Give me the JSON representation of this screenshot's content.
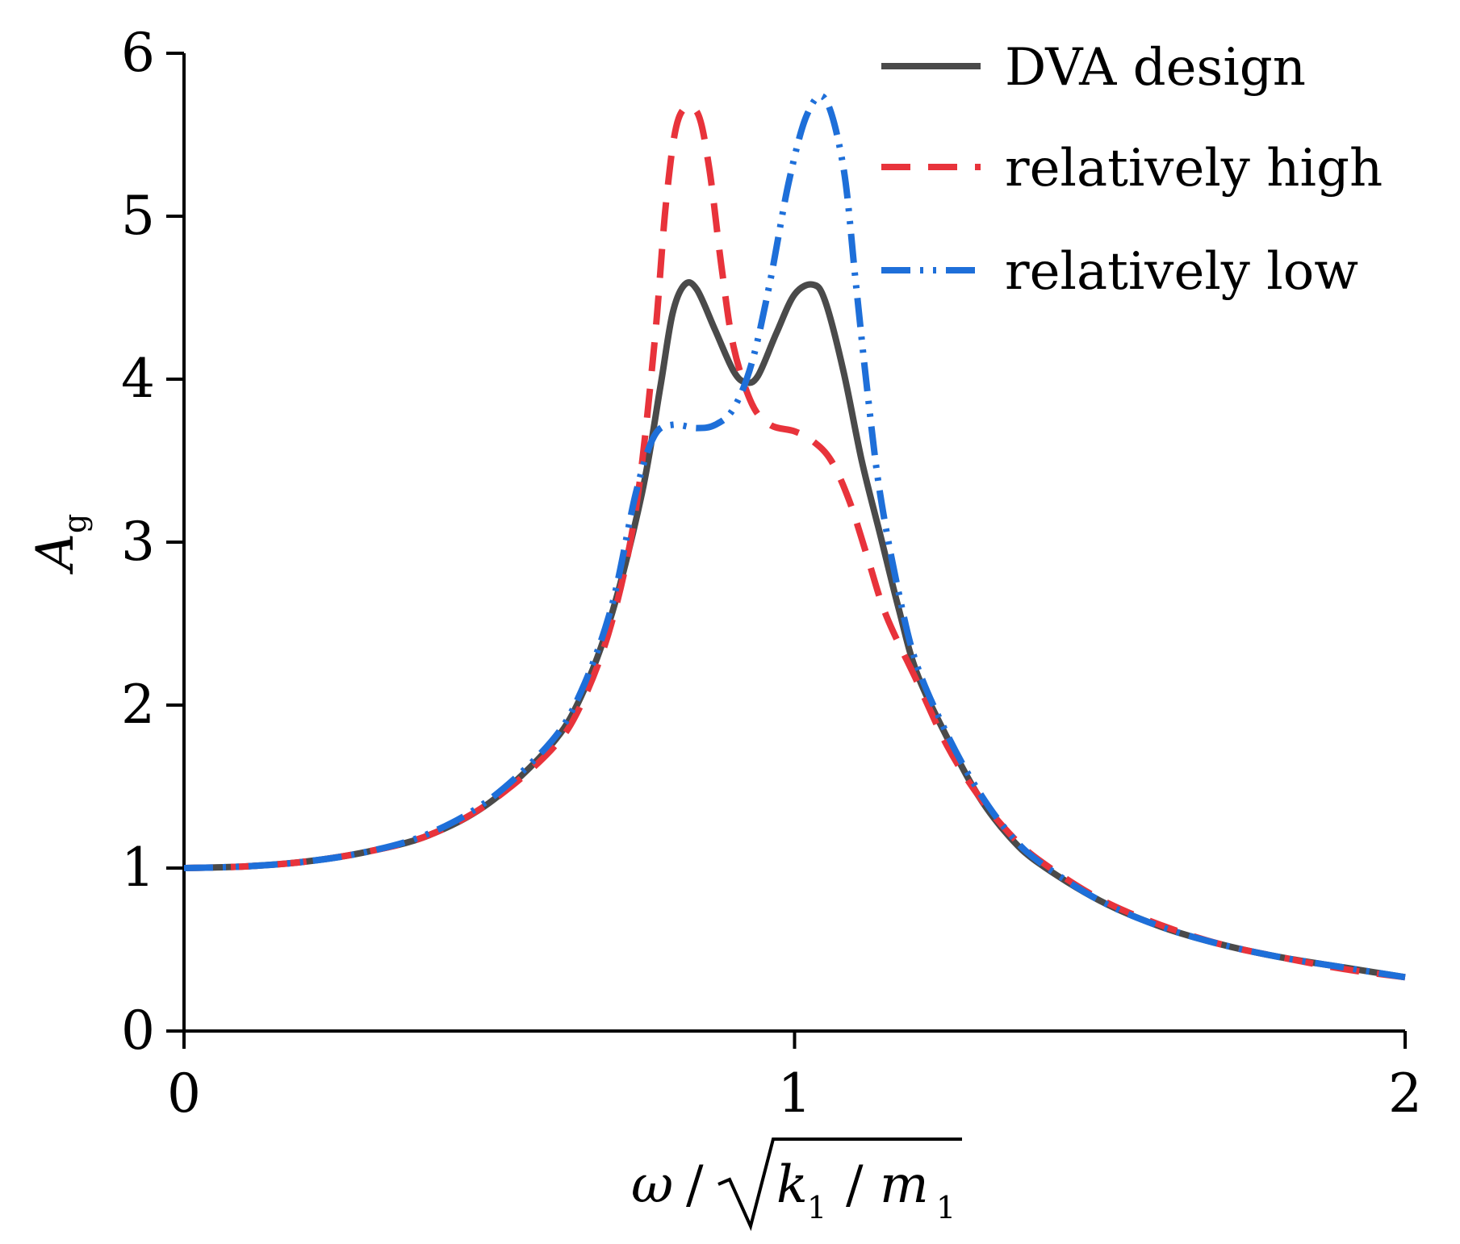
{
  "chart_data": {
    "type": "line",
    "title": "",
    "xlabel": {
      "omega": "ω",
      "slash1": "/",
      "k": "k",
      "k_sub": "1",
      "slash2": "/",
      "m": "m",
      "m_sub": "1"
    },
    "ylabel": {
      "main": "A",
      "sub": "g"
    },
    "xlim": [
      0,
      2
    ],
    "ylim": [
      0,
      6
    ],
    "xticks": [
      "0",
      "1",
      "2"
    ],
    "yticks": [
      "0",
      "1",
      "2",
      "3",
      "4",
      "5",
      "6"
    ],
    "xtick_values": [
      0,
      1,
      2
    ],
    "ytick_values": [
      0,
      1,
      2,
      3,
      4,
      5,
      6
    ],
    "grid": false,
    "legend_position": "top-right",
    "series": [
      {
        "name": "DVA design",
        "color": "#4a4a4a",
        "style": "solid",
        "points": [
          [
            0,
            1.0
          ],
          [
            0.1,
            1.01
          ],
          [
            0.2,
            1.04
          ],
          [
            0.3,
            1.1
          ],
          [
            0.4,
            1.2
          ],
          [
            0.5,
            1.4
          ],
          [
            0.6,
            1.75
          ],
          [
            0.65,
            2.05
          ],
          [
            0.7,
            2.55
          ],
          [
            0.75,
            3.3
          ],
          [
            0.78,
            3.95
          ],
          [
            0.8,
            4.4
          ],
          [
            0.82,
            4.58
          ],
          [
            0.84,
            4.55
          ],
          [
            0.87,
            4.3
          ],
          [
            0.9,
            4.05
          ],
          [
            0.92,
            3.98
          ],
          [
            0.94,
            4.02
          ],
          [
            0.97,
            4.28
          ],
          [
            1.0,
            4.52
          ],
          [
            1.03,
            4.58
          ],
          [
            1.05,
            4.48
          ],
          [
            1.08,
            4.05
          ],
          [
            1.11,
            3.5
          ],
          [
            1.14,
            3.05
          ],
          [
            1.17,
            2.6
          ],
          [
            1.2,
            2.2
          ],
          [
            1.25,
            1.8
          ],
          [
            1.3,
            1.45
          ],
          [
            1.35,
            1.2
          ],
          [
            1.4,
            1.03
          ],
          [
            1.5,
            0.8
          ],
          [
            1.6,
            0.64
          ],
          [
            1.7,
            0.53
          ],
          [
            1.8,
            0.45
          ],
          [
            1.9,
            0.39
          ],
          [
            2.0,
            0.33
          ]
        ]
      },
      {
        "name": "relatively high",
        "color": "#e8333b",
        "style": "dashed",
        "points": [
          [
            0,
            1.0
          ],
          [
            0.1,
            1.01
          ],
          [
            0.2,
            1.04
          ],
          [
            0.3,
            1.1
          ],
          [
            0.4,
            1.2
          ],
          [
            0.5,
            1.4
          ],
          [
            0.6,
            1.72
          ],
          [
            0.65,
            2.0
          ],
          [
            0.7,
            2.5
          ],
          [
            0.74,
            3.2
          ],
          [
            0.77,
            4.2
          ],
          [
            0.79,
            5.1
          ],
          [
            0.81,
            5.6
          ],
          [
            0.84,
            5.64
          ],
          [
            0.86,
            5.3
          ],
          [
            0.88,
            4.7
          ],
          [
            0.9,
            4.2
          ],
          [
            0.93,
            3.85
          ],
          [
            0.96,
            3.72
          ],
          [
            1.0,
            3.68
          ],
          [
            1.03,
            3.62
          ],
          [
            1.06,
            3.5
          ],
          [
            1.09,
            3.25
          ],
          [
            1.12,
            2.9
          ],
          [
            1.15,
            2.55
          ],
          [
            1.2,
            2.15
          ],
          [
            1.25,
            1.75
          ],
          [
            1.3,
            1.45
          ],
          [
            1.35,
            1.22
          ],
          [
            1.4,
            1.05
          ],
          [
            1.5,
            0.81
          ],
          [
            1.6,
            0.65
          ],
          [
            1.7,
            0.53
          ],
          [
            1.8,
            0.45
          ],
          [
            1.9,
            0.38
          ],
          [
            2.0,
            0.33
          ]
        ]
      },
      {
        "name": "relatively low",
        "color": "#1e6fd9",
        "style": "dash-dot-dot",
        "points": [
          [
            0,
            1.0
          ],
          [
            0.1,
            1.01
          ],
          [
            0.2,
            1.04
          ],
          [
            0.3,
            1.1
          ],
          [
            0.4,
            1.21
          ],
          [
            0.5,
            1.42
          ],
          [
            0.6,
            1.77
          ],
          [
            0.65,
            2.08
          ],
          [
            0.7,
            2.6
          ],
          [
            0.74,
            3.3
          ],
          [
            0.77,
            3.65
          ],
          [
            0.8,
            3.72
          ],
          [
            0.84,
            3.7
          ],
          [
            0.87,
            3.72
          ],
          [
            0.9,
            3.82
          ],
          [
            0.93,
            4.1
          ],
          [
            0.96,
            4.6
          ],
          [
            0.99,
            5.2
          ],
          [
            1.02,
            5.62
          ],
          [
            1.05,
            5.72
          ],
          [
            1.08,
            5.3
          ],
          [
            1.1,
            4.6
          ],
          [
            1.12,
            3.9
          ],
          [
            1.14,
            3.3
          ],
          [
            1.17,
            2.7
          ],
          [
            1.2,
            2.25
          ],
          [
            1.25,
            1.82
          ],
          [
            1.3,
            1.48
          ],
          [
            1.35,
            1.22
          ],
          [
            1.4,
            1.04
          ],
          [
            1.5,
            0.8
          ],
          [
            1.6,
            0.64
          ],
          [
            1.7,
            0.53
          ],
          [
            1.8,
            0.45
          ],
          [
            1.9,
            0.39
          ],
          [
            2.0,
            0.33
          ]
        ]
      }
    ]
  }
}
